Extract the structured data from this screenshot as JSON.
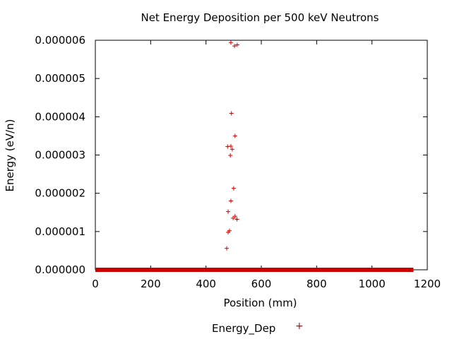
{
  "chart_data": {
    "type": "scatter",
    "title": "Net Energy Deposition per 500 keV Neutrons",
    "xlabel": "Position (mm)",
    "ylabel": "Energy (eV/n)",
    "xlim": [
      0,
      1200
    ],
    "ylim": [
      0,
      6e-06
    ],
    "x_ticks": [
      0,
      200,
      400,
      600,
      800,
      1000,
      1200
    ],
    "x_tick_labels": [
      "0",
      "200",
      "400",
      "600",
      "800",
      "1000",
      "1200"
    ],
    "y_ticks": [
      0,
      1e-06,
      2e-06,
      3e-06,
      4e-06,
      5e-06,
      6e-06
    ],
    "y_tick_labels": [
      "0.000000",
      "0.000001",
      "0.000002",
      "0.000003",
      "0.000004",
      "0.000005",
      "0.000006"
    ],
    "grid": false,
    "legend": "bottom-center",
    "series": [
      {
        "name": "Energy_Dep",
        "color": "#cc0000",
        "marker": "+",
        "baseline": {
          "x_start": 0,
          "x_end": 1150,
          "y": 0
        },
        "points": [
          [
            490,
            5.94e-06
          ],
          [
            503,
            5.85e-06
          ],
          [
            513,
            5.88e-06
          ],
          [
            492,
            4.09e-06
          ],
          [
            505,
            3.5e-06
          ],
          [
            478,
            3.22e-06
          ],
          [
            490,
            3.23e-06
          ],
          [
            495,
            3.15e-06
          ],
          [
            488,
            2.99e-06
          ],
          [
            500,
            2.13e-06
          ],
          [
            490,
            1.8e-06
          ],
          [
            480,
            1.52e-06
          ],
          [
            505,
            1.4e-06
          ],
          [
            498,
            1.35e-06
          ],
          [
            512,
            1.32e-06
          ],
          [
            485,
            1.02e-06
          ],
          [
            480,
            9.8e-07
          ],
          [
            475,
            5.6e-07
          ]
        ]
      }
    ]
  }
}
